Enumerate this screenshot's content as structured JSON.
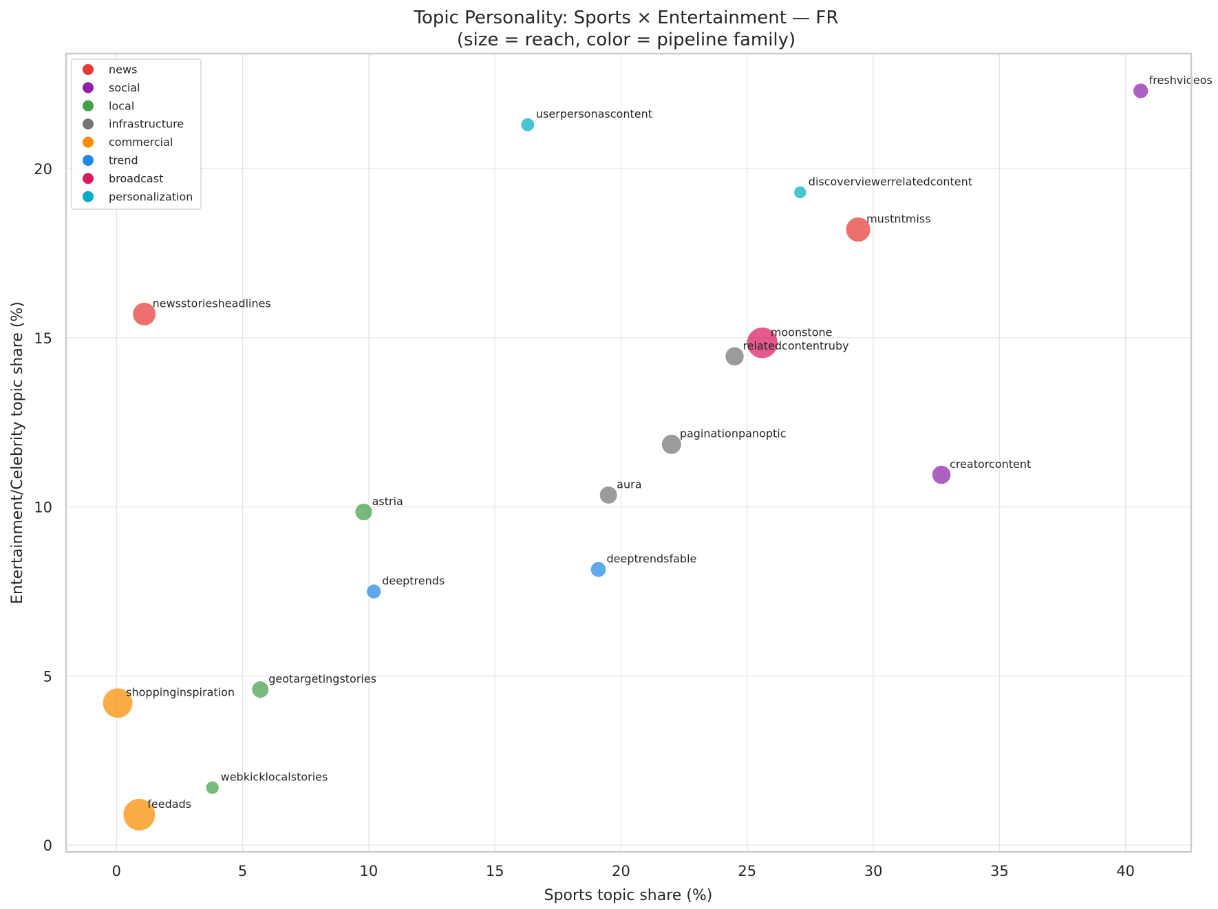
{
  "chart_data": {
    "type": "scatter",
    "title_line1": "Topic Personality: Sports × Entertainment — FR",
    "title_line2": "(size = reach, color = pipeline family)",
    "xlabel": "Sports topic share (%)",
    "ylabel": "Entertainment/Celebrity topic share (%)",
    "xlim": [
      -2,
      42.6
    ],
    "ylim": [
      -0.2,
      23.4
    ],
    "xticks": [
      0,
      5,
      10,
      15,
      20,
      25,
      30,
      35,
      40
    ],
    "yticks": [
      0,
      5,
      10,
      15,
      20
    ],
    "grid": true,
    "legend_position": "upper-left",
    "families": [
      {
        "name": "news",
        "color": "#e53935"
      },
      {
        "name": "social",
        "color": "#8e24aa"
      },
      {
        "name": "local",
        "color": "#43a047"
      },
      {
        "name": "infrastructure",
        "color": "#757575"
      },
      {
        "name": "commercial",
        "color": "#fb8c00"
      },
      {
        "name": "trend",
        "color": "#1e88e5"
      },
      {
        "name": "broadcast",
        "color": "#d81b60"
      },
      {
        "name": "personalization",
        "color": "#00acc1"
      }
    ],
    "points": [
      {
        "label": "freshvideos",
        "x": 40.6,
        "y": 22.3,
        "family": "social",
        "reach": 1.5
      },
      {
        "label": "userpersonascontent",
        "x": 16.3,
        "y": 21.3,
        "family": "personalization",
        "reach": 1.0
      },
      {
        "label": "discoverviewerrelatedcontent",
        "x": 27.1,
        "y": 19.3,
        "family": "personalization",
        "reach": 0.7
      },
      {
        "label": "mustntmiss",
        "x": 29.4,
        "y": 18.2,
        "family": "news",
        "reach": 6.5
      },
      {
        "label": "newsstoriesheadlines",
        "x": 1.1,
        "y": 15.7,
        "family": "news",
        "reach": 5.5
      },
      {
        "label": "moonstone",
        "x": 25.6,
        "y": 14.85,
        "family": "broadcast",
        "reach": 12.0
      },
      {
        "label": "relatedcontentruby",
        "x": 24.5,
        "y": 14.45,
        "family": "infrastructure",
        "reach": 3.0
      },
      {
        "label": "paginationpanoptic",
        "x": 22.0,
        "y": 11.85,
        "family": "infrastructure",
        "reach": 3.5
      },
      {
        "label": "creatorcontent",
        "x": 32.7,
        "y": 10.95,
        "family": "social",
        "reach": 3.0
      },
      {
        "label": "aura",
        "x": 19.5,
        "y": 10.35,
        "family": "infrastructure",
        "reach": 2.5
      },
      {
        "label": "astria",
        "x": 9.8,
        "y": 9.85,
        "family": "local",
        "reach": 2.3
      },
      {
        "label": "deeptrendsfable",
        "x": 19.1,
        "y": 8.15,
        "family": "trend",
        "reach": 1.6
      },
      {
        "label": "deeptrends",
        "x": 10.2,
        "y": 7.5,
        "family": "trend",
        "reach": 1.3
      },
      {
        "label": "geotargetingstories",
        "x": 5.7,
        "y": 4.6,
        "family": "local",
        "reach": 2.2
      },
      {
        "label": "shoppinginspiration",
        "x": 0.05,
        "y": 4.2,
        "family": "commercial",
        "reach": 11.0
      },
      {
        "label": "webkicklocalstories",
        "x": 3.8,
        "y": 1.7,
        "family": "local",
        "reach": 0.9
      },
      {
        "label": "feedads",
        "x": 0.9,
        "y": 0.9,
        "family": "commercial",
        "reach": 13.0
      }
    ]
  }
}
